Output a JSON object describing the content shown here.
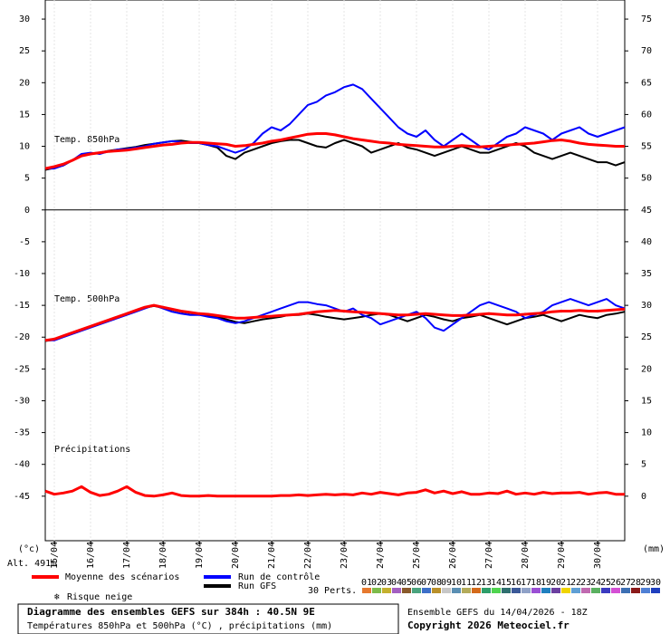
{
  "chart_data": [
    {
      "type": "line",
      "title": "Temp. 850hPa",
      "categories": [
        null,
        "15/04",
        null,
        null,
        null,
        "16/04",
        null,
        null,
        null,
        "17/04",
        null,
        null,
        null,
        "18/04",
        null,
        null,
        null,
        "19/04",
        null,
        null,
        null,
        "20/04",
        null,
        null,
        null,
        "21/04",
        null,
        null,
        null,
        "22/04",
        null,
        null,
        null,
        "23/04",
        null,
        null,
        null,
        "24/04",
        null,
        null,
        null,
        "25/04",
        null,
        null,
        null,
        "26/04",
        null,
        null,
        null,
        "27/04",
        null,
        null,
        null,
        "28/04",
        null,
        null,
        null,
        "29/04",
        null,
        null,
        null,
        "30/04",
        null,
        null,
        null
      ],
      "ylim": [
        -52,
        33
      ],
      "yticks": [
        30,
        25,
        20,
        15,
        10,
        5,
        0,
        -5,
        -10,
        -15,
        -20,
        -25,
        -30,
        -35,
        -40,
        -45
      ],
      "y2lim": [
        -7,
        78
      ],
      "y2ticks": [
        75,
        70,
        65,
        60,
        55,
        50,
        45,
        40,
        35,
        30,
        25,
        20,
        15,
        10,
        5,
        0
      ],
      "ylabel": "(°c)",
      "y2label": "(mm)",
      "grid": "x",
      "series": [
        {
          "name": "Moyenne des scénarios",
          "color": "#ff0000",
          "values": [
            6.5,
            6.8,
            7.2,
            7.8,
            8.5,
            8.8,
            9.0,
            9.2,
            9.3,
            9.4,
            9.6,
            9.8,
            10.0,
            10.2,
            10.3,
            10.5,
            10.6,
            10.6,
            10.5,
            10.4,
            10.3,
            10.0,
            10.1,
            10.3,
            10.5,
            10.8,
            11.0,
            11.3,
            11.6,
            11.9,
            12.0,
            12.0,
            11.8,
            11.5,
            11.2,
            11.0,
            10.8,
            10.6,
            10.5,
            10.3,
            10.2,
            10.1,
            10.0,
            9.9,
            9.9,
            10.0,
            10.1,
            10.0,
            9.9,
            10.0,
            10.1,
            10.2,
            10.3,
            10.4,
            10.5,
            10.7,
            10.9,
            11.0,
            10.8,
            10.5,
            10.3,
            10.2,
            10.1,
            10.0,
            10.0
          ]
        },
        {
          "name": "Run de contrôle",
          "color": "#0000ff",
          "values": [
            6.5,
            6.5,
            7.0,
            7.8,
            8.8,
            9.0,
            8.8,
            9.2,
            9.5,
            9.6,
            9.8,
            10.0,
            10.4,
            10.6,
            10.8,
            10.7,
            10.5,
            10.5,
            10.2,
            10.0,
            9.5,
            9.0,
            9.5,
            10.5,
            12.0,
            13.0,
            12.5,
            13.5,
            15.0,
            16.5,
            17.0,
            18.0,
            18.5,
            19.3,
            19.7,
            19.0,
            17.5,
            16.0,
            14.5,
            13.0,
            12.0,
            11.5,
            12.5,
            11.0,
            10.0,
            11.0,
            12.0,
            11.0,
            10.0,
            9.5,
            10.5,
            11.5,
            12.0,
            13.0,
            12.5,
            12.0,
            11.0,
            12.0,
            12.5,
            13.0,
            12.0,
            11.5,
            12.0,
            12.5,
            13.0
          ]
        },
        {
          "name": "Run GFS",
          "color": "#000000",
          "values": [
            6.3,
            6.6,
            7.0,
            7.8,
            8.6,
            8.9,
            9.0,
            9.3,
            9.5,
            9.7,
            9.9,
            10.2,
            10.4,
            10.6,
            10.8,
            10.9,
            10.7,
            10.5,
            10.2,
            9.8,
            8.5,
            8.0,
            9.0,
            9.5,
            10.0,
            10.5,
            10.8,
            11.0,
            11.0,
            10.5,
            10.0,
            9.8,
            10.5,
            11.0,
            10.5,
            10.0,
            9.0,
            9.5,
            10.0,
            10.5,
            9.8,
            9.5,
            9.0,
            8.5,
            9.0,
            9.5,
            10.0,
            9.5,
            9.0,
            9.0,
            9.5,
            10.0,
            10.5,
            10.0,
            9.0,
            8.5,
            8.0,
            8.5,
            9.0,
            8.5,
            8.0,
            7.5,
            7.5,
            7.0,
            7.5
          ]
        }
      ]
    },
    {
      "type": "line",
      "title": "Temp. 500hPa",
      "series": [
        {
          "name": "Moyenne des scénarios",
          "color": "#ff0000",
          "values": [
            -20.5,
            -20.3,
            -19.8,
            -19.3,
            -18.8,
            -18.3,
            -17.8,
            -17.3,
            -16.8,
            -16.3,
            -15.8,
            -15.3,
            -15.0,
            -15.3,
            -15.6,
            -15.9,
            -16.1,
            -16.3,
            -16.4,
            -16.6,
            -16.8,
            -17.0,
            -17.0,
            -16.9,
            -16.8,
            -16.7,
            -16.6,
            -16.5,
            -16.4,
            -16.2,
            -16.0,
            -15.9,
            -15.8,
            -15.9,
            -16.0,
            -16.1,
            -16.2,
            -16.3,
            -16.4,
            -16.5,
            -16.5,
            -16.4,
            -16.3,
            -16.4,
            -16.5,
            -16.6,
            -16.6,
            -16.5,
            -16.4,
            -16.3,
            -16.4,
            -16.5,
            -16.5,
            -16.4,
            -16.3,
            -16.2,
            -16.0,
            -15.9,
            -15.9,
            -15.8,
            -15.9,
            -15.9,
            -15.8,
            -15.7,
            -15.6
          ]
        },
        {
          "name": "Run de contrôle",
          "color": "#0000ff",
          "values": [
            -20.5,
            -20.5,
            -20.0,
            -19.5,
            -19.0,
            -18.5,
            -18.0,
            -17.5,
            -17.0,
            -16.5,
            -16.0,
            -15.5,
            -15.0,
            -15.5,
            -16.0,
            -16.3,
            -16.5,
            -16.5,
            -16.8,
            -17.0,
            -17.5,
            -17.8,
            -17.5,
            -17.0,
            -16.5,
            -16.0,
            -15.5,
            -15.0,
            -14.5,
            -14.5,
            -14.8,
            -15.0,
            -15.5,
            -16.0,
            -15.5,
            -16.5,
            -17.0,
            -18.0,
            -17.5,
            -17.0,
            -16.5,
            -16.0,
            -17.0,
            -18.5,
            -19.0,
            -18.0,
            -17.0,
            -16.0,
            -15.0,
            -14.5,
            -15.0,
            -15.5,
            -16.0,
            -17.0,
            -16.5,
            -16.0,
            -15.0,
            -14.5,
            -14.0,
            -14.5,
            -15.0,
            -14.5,
            -14.0,
            -15.0,
            -15.5
          ]
        },
        {
          "name": "Run GFS",
          "color": "#000000",
          "values": [
            -20.6,
            -20.4,
            -19.9,
            -19.4,
            -18.9,
            -18.4,
            -17.9,
            -17.4,
            -16.9,
            -16.4,
            -15.9,
            -15.4,
            -15.1,
            -15.4,
            -15.7,
            -16.0,
            -16.2,
            -16.4,
            -16.6,
            -16.8,
            -17.2,
            -17.6,
            -17.8,
            -17.5,
            -17.2,
            -17.0,
            -16.8,
            -16.5,
            -16.5,
            -16.3,
            -16.5,
            -16.8,
            -17.0,
            -17.2,
            -17.0,
            -16.8,
            -16.5,
            -16.3,
            -16.5,
            -17.0,
            -17.5,
            -17.0,
            -16.5,
            -16.8,
            -17.2,
            -17.5,
            -17.0,
            -16.8,
            -16.5,
            -17.0,
            -17.5,
            -18.0,
            -17.5,
            -17.0,
            -16.8,
            -16.5,
            -17.0,
            -17.5,
            -17.0,
            -16.5,
            -16.8,
            -17.0,
            -16.5,
            -16.3,
            -16.0
          ]
        }
      ]
    },
    {
      "type": "line",
      "title": "Précipitations",
      "series": [
        {
          "name": "Moyenne des scénarios",
          "color": "#ff0000",
          "axis": "y2",
          "values": [
            0.8,
            0.3,
            0.5,
            0.8,
            1.5,
            0.6,
            0.1,
            0.3,
            0.8,
            1.5,
            0.6,
            0.1,
            0.0,
            0.2,
            0.5,
            0.1,
            0.0,
            0.0,
            0.1,
            0.0,
            0.0,
            0.0,
            0.0,
            0.0,
            0.0,
            0.0,
            0.1,
            0.1,
            0.2,
            0.1,
            0.2,
            0.3,
            0.2,
            0.3,
            0.2,
            0.5,
            0.3,
            0.6,
            0.4,
            0.2,
            0.5,
            0.6,
            1.0,
            0.5,
            0.8,
            0.4,
            0.7,
            0.3,
            0.3,
            0.5,
            0.4,
            0.8,
            0.3,
            0.5,
            0.3,
            0.6,
            0.4,
            0.5,
            0.5,
            0.6,
            0.3,
            0.5,
            0.6,
            0.3,
            0.3
          ]
        }
      ]
    }
  ],
  "altitude": "Alt. 491m",
  "legend": {
    "snow": "Risque neige",
    "perts": "30 Perts.",
    "perturbations": [
      {
        "name": "01",
        "color": "#e6792e"
      },
      {
        "name": "02",
        "color": "#7dbb4a"
      },
      {
        "name": "03",
        "color": "#c4b02e"
      },
      {
        "name": "04",
        "color": "#a35fc1"
      },
      {
        "name": "05",
        "color": "#8a5a2b"
      },
      {
        "name": "06",
        "color": "#4aa37e"
      },
      {
        "name": "07",
        "color": "#3d6fc9"
      },
      {
        "name": "08",
        "color": "#b9902a"
      },
      {
        "name": "09",
        "color": "#c7c7c7"
      },
      {
        "name": "10",
        "color": "#5a8fb3"
      },
      {
        "name": "11",
        "color": "#b3ab5a"
      },
      {
        "name": "12",
        "color": "#d46a1a"
      },
      {
        "name": "13",
        "color": "#2e9e6a"
      },
      {
        "name": "14",
        "color": "#4fd44f"
      },
      {
        "name": "15",
        "color": "#2f6f6f"
      },
      {
        "name": "16",
        "color": "#3b5998"
      },
      {
        "name": "17",
        "color": "#8fa1c7"
      },
      {
        "name": "18",
        "color": "#9a4fd4"
      },
      {
        "name": "19",
        "color": "#1f7fbf"
      },
      {
        "name": "20",
        "color": "#6b3fa0"
      },
      {
        "name": "21",
        "color": "#f0d400"
      },
      {
        "name": "22",
        "color": "#5f9fd4"
      },
      {
        "name": "23",
        "color": "#c06ab0"
      },
      {
        "name": "24",
        "color": "#5ab060"
      },
      {
        "name": "25",
        "color": "#3a3ac0"
      },
      {
        "name": "26",
        "color": "#d44fd4"
      },
      {
        "name": "27",
        "color": "#3d6fb3"
      },
      {
        "name": "28",
        "color": "#8b1a1a"
      },
      {
        "name": "29",
        "color": "#4f7fd4"
      },
      {
        "name": "30",
        "color": "#1f3fbf"
      }
    ]
  },
  "footer": {
    "title": "Diagramme des ensembles GEFS sur 384h : 40.5N 9E",
    "subtitle": "Températures 850hPa et 500hPa (°C) , précipitations (mm)",
    "run": "Ensemble GEFS du 14/04/2026 - 18Z",
    "copyright": "Copyright 2026 Meteociel.fr"
  }
}
